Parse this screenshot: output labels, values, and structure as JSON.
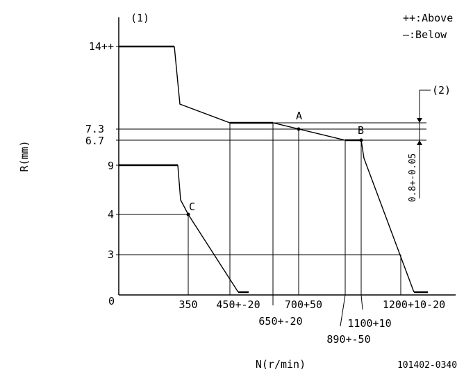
{
  "header": {
    "ref_1": "(1)",
    "ref_2": "(2)",
    "legend_above": "++:Above",
    "legend_below": "—:Below"
  },
  "axes": {
    "y_label": "R(mm)",
    "x_label": "N(r/min)",
    "origin": "0"
  },
  "y_ticks": {
    "t14": "14++",
    "t73": "7.3",
    "t67": "6.7",
    "t9": "9",
    "t4": "4",
    "t3": "3"
  },
  "x_ticks": {
    "t350": "350",
    "t450": "450+-20",
    "t650": "650+-20",
    "t700": "700+50",
    "t890": "890+-50",
    "t1100": "1100+10",
    "t1200": "1200+10-20"
  },
  "points": {
    "a": "A",
    "b": "B",
    "c": "C"
  },
  "dimension": "0.8+-0.05",
  "doc_id": "101402-0340"
}
